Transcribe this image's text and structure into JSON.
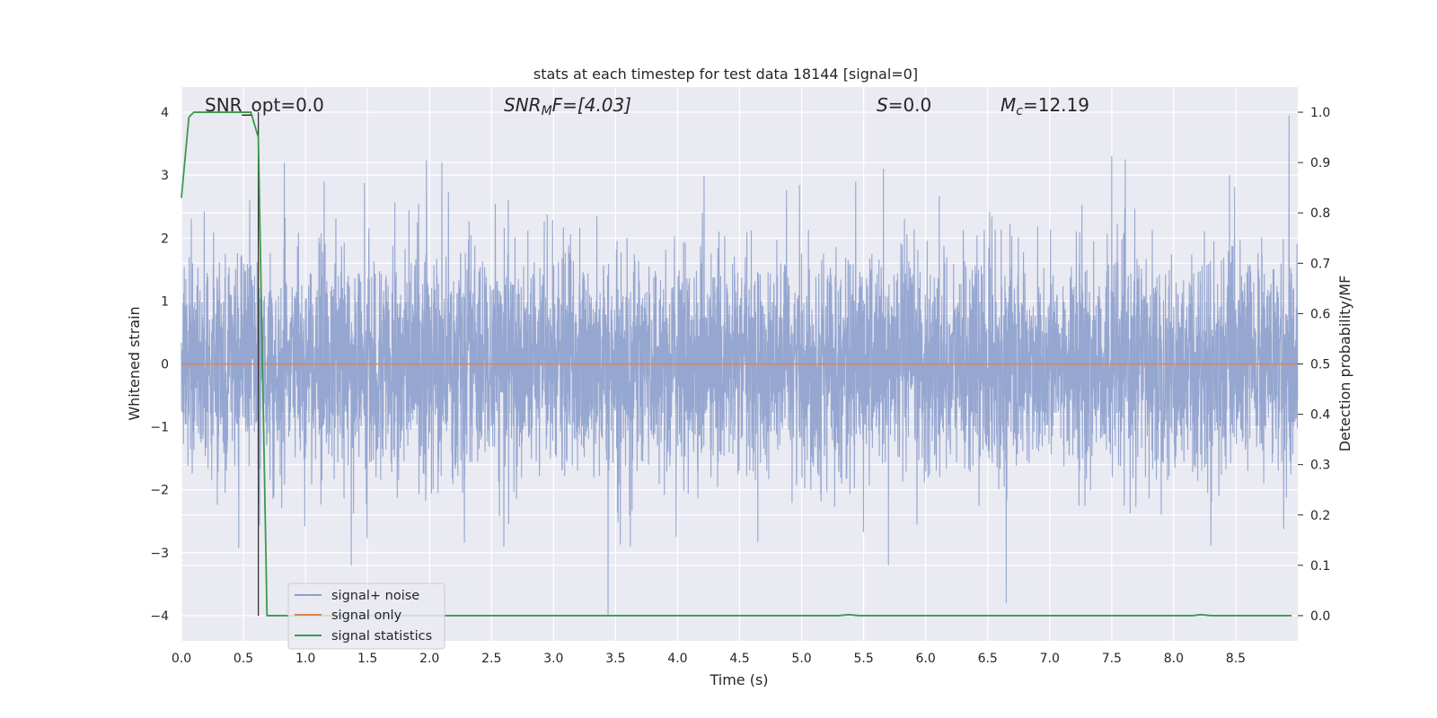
{
  "chart_data": {
    "type": "line",
    "title": "stats at each timestep for test data 18144 [signal=0]",
    "xlabel": "Time (s)",
    "ylabel": "Whitened strain",
    "y2label": "Detection probability/MF",
    "xlim": [
      0.0,
      9.0
    ],
    "ylim": [
      -4.4,
      4.4
    ],
    "y2lim": [
      -0.05,
      1.05
    ],
    "xticks": [
      "0.0",
      "0.5",
      "1.0",
      "1.5",
      "2.0",
      "2.5",
      "3.0",
      "3.5",
      "4.0",
      "4.5",
      "5.0",
      "5.5",
      "6.0",
      "6.5",
      "7.0",
      "7.5",
      "8.0",
      "8.5"
    ],
    "yticks": [
      "−4",
      "−3",
      "−2",
      "−1",
      "0",
      "1",
      "2",
      "3",
      "4"
    ],
    "y2ticks": [
      "0.0",
      "0.1",
      "0.2",
      "0.3",
      "0.4",
      "0.5",
      "0.6",
      "0.7",
      "0.8",
      "0.9",
      "1.0"
    ],
    "grid": true,
    "legend_position": "lower-left",
    "annotations": {
      "snr_opt": "SNR_opt=0.0",
      "snr_mf_main": "SNR",
      "snr_mf_sub": "M",
      "snr_mf_rest": "F=[4.03]",
      "s_main": "S",
      "s_rest": "=0.0",
      "mc_main": "M",
      "mc_sub": "c",
      "mc_rest": "=12.19"
    },
    "vline_x": 0.62,
    "series": [
      {
        "name": "signal+ noise",
        "axis": "left",
        "color": "#8c9fcc",
        "sampling_rate_hz": 2048,
        "amplitude_envelope": [
          -4.0,
          4.0
        ],
        "note_values": "whitened gaussian noise, dense trace",
        "notable_peaks": [
          [
            0.08,
            2.3
          ],
          [
            0.55,
            2.6
          ],
          [
            0.83,
            3.2
          ],
          [
            1.15,
            2.9
          ],
          [
            1.37,
            -3.2
          ],
          [
            2.1,
            3.2
          ],
          [
            2.6,
            -2.9
          ],
          [
            3.44,
            -4.0
          ],
          [
            3.62,
            -2.9
          ],
          [
            4.2,
            2.4
          ],
          [
            5.66,
            3.1
          ],
          [
            5.7,
            -3.2
          ],
          [
            6.65,
            -3.8
          ],
          [
            7.5,
            3.3
          ],
          [
            8.45,
            3.0
          ],
          [
            8.93,
            3.95
          ]
        ]
      },
      {
        "name": "signal only",
        "axis": "left",
        "color": "#dd8452",
        "x": [
          0.0,
          9.0
        ],
        "y": [
          0.0,
          0.0
        ]
      },
      {
        "name": "signal statistics",
        "axis": "right",
        "color": "#3b9a4b",
        "x": [
          0.0,
          0.06,
          0.1,
          0.2,
          0.3,
          0.4,
          0.5,
          0.56,
          0.62,
          0.69,
          0.75,
          1.0,
          2.0,
          3.0,
          4.0,
          5.0,
          5.3,
          5.38,
          5.46,
          6.0,
          7.0,
          8.0,
          8.15,
          8.22,
          8.3,
          8.5,
          8.95
        ],
        "y": [
          0.83,
          0.99,
          1.0,
          1.0,
          1.0,
          1.0,
          1.0,
          1.0,
          0.95,
          0.0,
          0.0,
          0.0,
          0.0,
          0.0,
          0.0,
          0.0,
          0.0,
          0.002,
          0.0,
          0.0,
          0.0,
          0.0,
          0.0,
          0.002,
          0.0,
          0.0,
          0.0
        ]
      }
    ]
  }
}
